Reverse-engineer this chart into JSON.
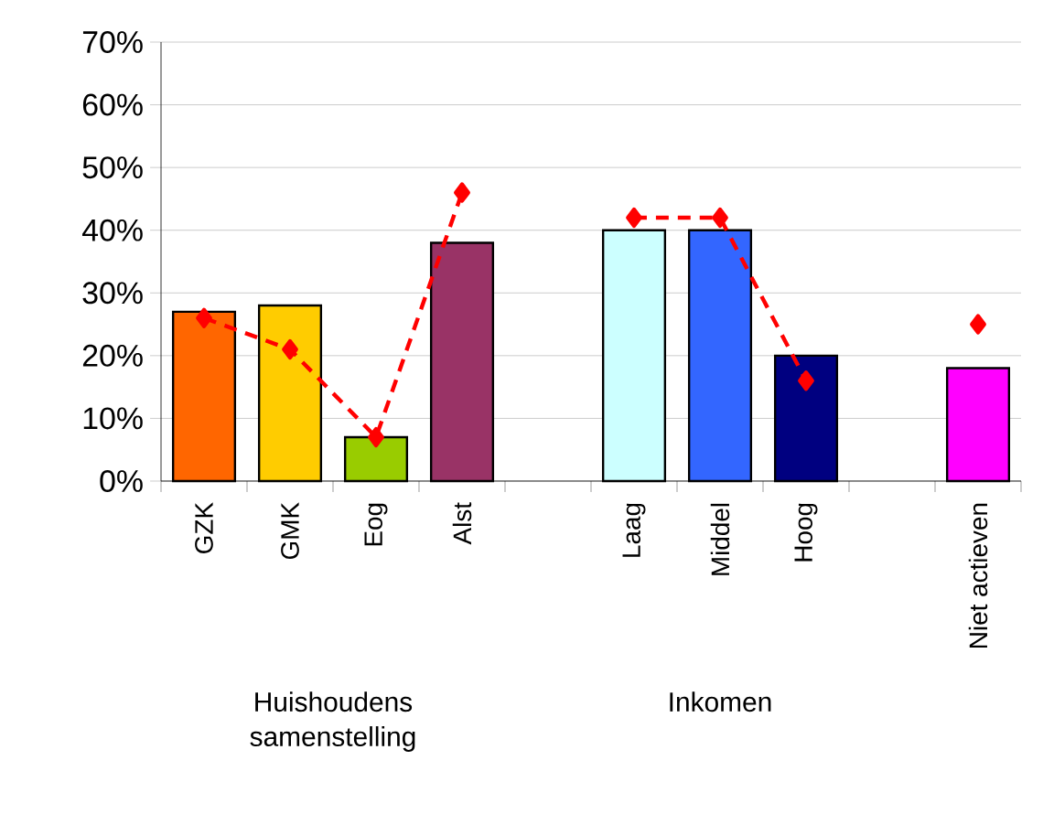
{
  "chart_data": {
    "type": "bar",
    "categories": [
      "GZK",
      "GMK",
      "Eog",
      "Alst",
      null,
      "Laag",
      "Middel",
      "Hoog",
      null,
      "Niet actieven"
    ],
    "series": [
      {
        "values": [
          27,
          28,
          7,
          38,
          null,
          40,
          40,
          20,
          null,
          18
        ],
        "colors": [
          "#ff6600",
          "#ffcc00",
          "#99cc00",
          "#993366",
          null,
          "#ccffff",
          "#3366ff",
          "#000080",
          null,
          "#ff00ff"
        ]
      },
      {
        "type": "line",
        "color": "#ff0000",
        "marker": "diamond",
        "line_style": "dashed",
        "values": [
          26,
          21,
          7,
          46,
          null,
          42,
          42,
          16,
          null,
          25
        ]
      }
    ],
    "ylim": [
      0,
      70
    ],
    "yticks": [
      {
        "value": 0,
        "label": "0%"
      },
      {
        "value": 10,
        "label": "10%"
      },
      {
        "value": 20,
        "label": "20%"
      },
      {
        "value": 30,
        "label": "30%"
      },
      {
        "value": 40,
        "label": "40%"
      },
      {
        "value": 50,
        "label": "50%"
      },
      {
        "value": 60,
        "label": "60%"
      },
      {
        "value": 70,
        "label": "70%"
      }
    ],
    "grid": "y",
    "annotations": [
      "Huishoudens samenstelling",
      "Inkomen"
    ]
  }
}
